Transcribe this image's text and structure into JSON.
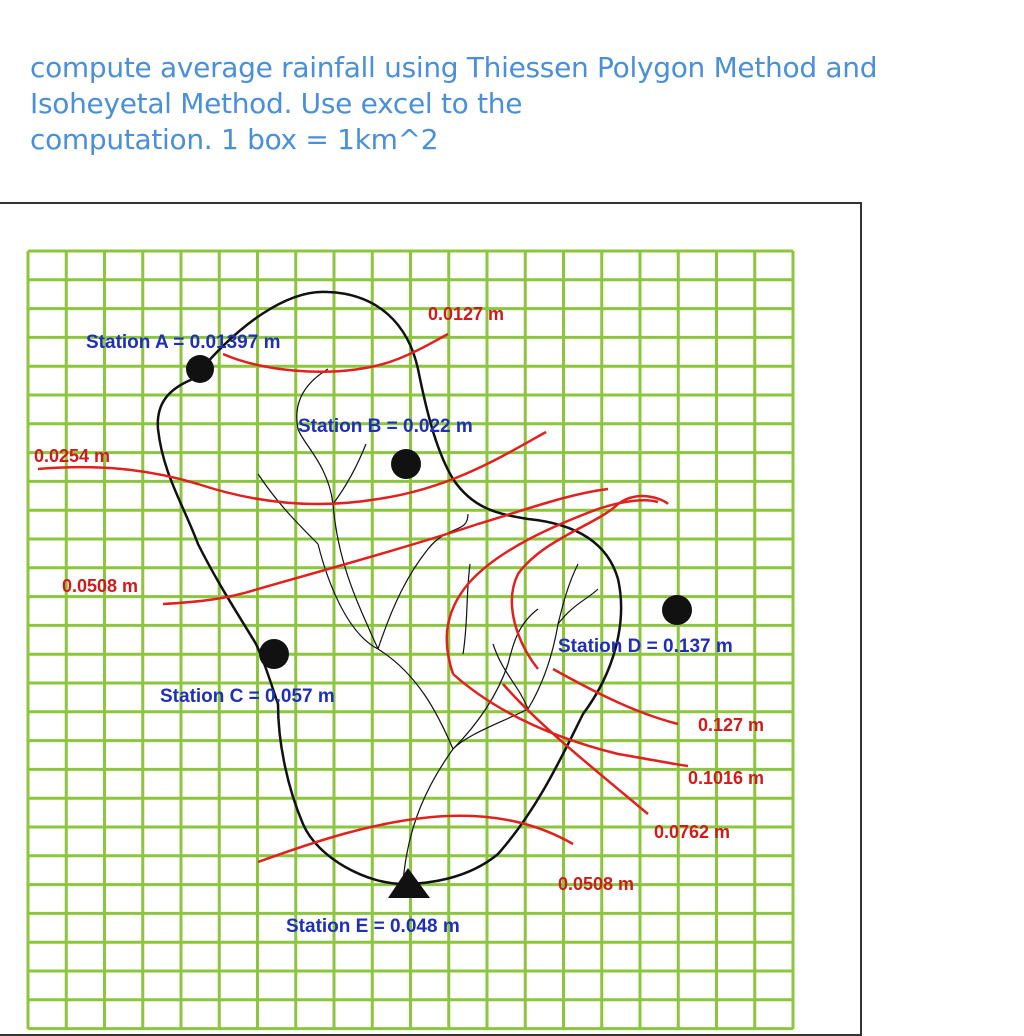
{
  "question": {
    "lines": [
      "compute average rainfall using Thiessen Polygon Method and",
      "Isoheyetal Method. Use excel to the",
      "computation. 1 box = 1km^2"
    ]
  },
  "stations": [
    {
      "id": "A",
      "label": "Station A = 0.01397 m",
      "marker": "circle"
    },
    {
      "id": "B",
      "label": "Station B = 0.022 m",
      "marker": "circle"
    },
    {
      "id": "C",
      "label": "Station C = 0.057 m",
      "marker": "circle"
    },
    {
      "id": "D",
      "label": "Station D = 0.137 m",
      "marker": "circle"
    },
    {
      "id": "E",
      "label": "Station E = 0.048 m",
      "marker": "triangle"
    }
  ],
  "isohyet_labels": [
    "0.0127 m",
    "0.0254 m",
    "0.0508 m",
    "0.127 m",
    "0.1016 m",
    "0.0762 m",
    "0.0508 m"
  ],
  "colors": {
    "question_text": "#4a8fd9",
    "grid": "#8cc63f",
    "isohyet": "#e0211d",
    "station_label": "#1f2fb8",
    "isohyet_label": "#d11a1a",
    "boundary": "#111111"
  }
}
